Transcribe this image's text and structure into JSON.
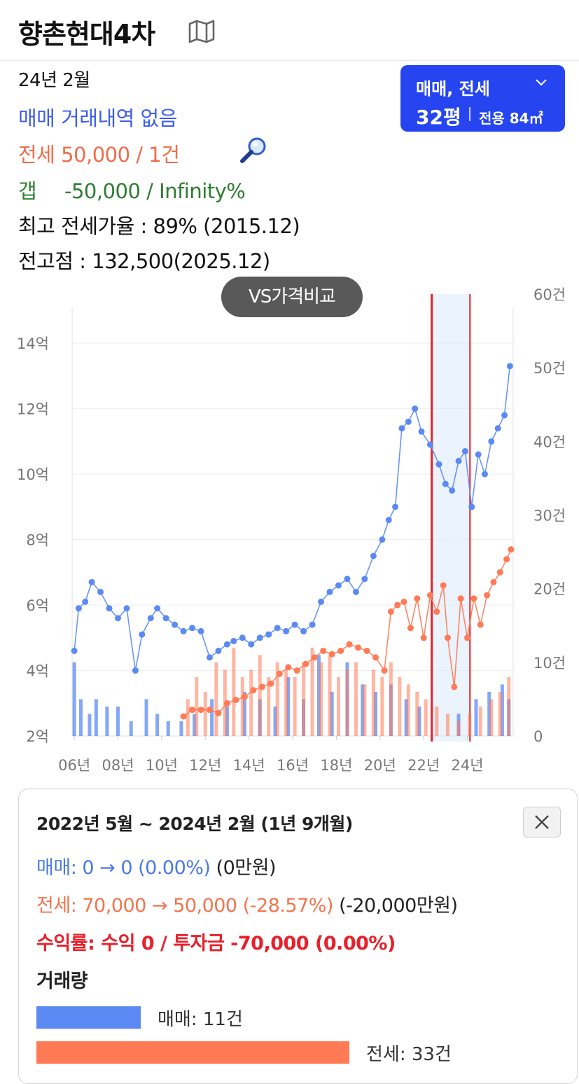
{
  "header": {
    "title": "향촌현대4차",
    "map_icon": "map-icon"
  },
  "info": {
    "date": "24년 2월",
    "maemae": "매매 거래내역 없음",
    "jeonse": "전세 50,000 / 1건",
    "gap_label": "갭",
    "gap_value": "-50,000 / Infinity%",
    "max_rate": "최고 전세가율 : 89% (2015.12)",
    "peak": "전고점 : 132,500(2025.12)"
  },
  "selector": {
    "type": "매매, 전세",
    "size": "32평",
    "area": "전용 84㎡"
  },
  "vs_button": "VS가격비교",
  "colors": {
    "maemae": "#5b8af5",
    "jeonse": "#ff7a55",
    "highlight": "#e8202a",
    "selector_bg": "#2645f0"
  },
  "chart_data": {
    "type": "line",
    "x_labels": [
      "06년",
      "08년",
      "10년",
      "12년",
      "14년",
      "16년",
      "18년",
      "20년",
      "22년",
      "24년"
    ],
    "y_left_labels": [
      "2억",
      "4억",
      "6억",
      "8억",
      "10억",
      "12억",
      "14억"
    ],
    "y_right_labels": [
      "0",
      "10건",
      "20건",
      "30건",
      "40건",
      "50건",
      "60건"
    ],
    "y_left_range": [
      2,
      15.5
    ],
    "y_right_range": [
      0,
      60
    ],
    "x_range": [
      2005.9,
      2026.1
    ],
    "grid": true,
    "highlight_range": [
      2022.37,
      2024.12
    ],
    "series": [
      {
        "name": "매매",
        "x": [
          2006.0,
          2006.2,
          2006.5,
          2006.8,
          2007.2,
          2007.6,
          2008.0,
          2008.4,
          2008.8,
          2009.1,
          2009.5,
          2009.8,
          2010.2,
          2010.6,
          2011.0,
          2011.4,
          2011.8,
          2012.2,
          2012.6,
          2013.0,
          2013.3,
          2013.7,
          2014.1,
          2014.5,
          2014.9,
          2015.3,
          2015.7,
          2016.1,
          2016.5,
          2016.9,
          2017.3,
          2017.7,
          2018.1,
          2018.5,
          2018.9,
          2019.3,
          2019.7,
          2020.1,
          2020.4,
          2020.7,
          2021.0,
          2021.3,
          2021.6,
          2021.9,
          2022.3,
          2022.7,
          2023.0,
          2023.3,
          2023.6,
          2023.9,
          2024.2,
          2024.5,
          2024.8,
          2025.1,
          2025.4,
          2025.7,
          2025.95
        ],
        "values": [
          4.6,
          5.9,
          6.1,
          6.7,
          6.4,
          5.9,
          5.6,
          5.9,
          4.0,
          5.1,
          5.6,
          5.9,
          5.6,
          5.4,
          5.2,
          5.3,
          5.2,
          4.4,
          4.6,
          4.8,
          4.9,
          5.0,
          4.8,
          5.0,
          5.1,
          5.3,
          5.2,
          5.4,
          5.2,
          5.4,
          6.1,
          6.4,
          6.6,
          6.8,
          6.4,
          6.8,
          7.5,
          8.0,
          8.6,
          9.0,
          11.4,
          11.6,
          12.0,
          11.3,
          10.9,
          10.3,
          9.7,
          9.5,
          10.4,
          10.7,
          9.0,
          10.6,
          10.0,
          11.0,
          11.4,
          11.8,
          13.3
        ]
      },
      {
        "name": "전세",
        "x": [
          2011.0,
          2011.4,
          2011.8,
          2012.2,
          2012.6,
          2013.0,
          2013.4,
          2013.8,
          2014.2,
          2014.6,
          2015.0,
          2015.4,
          2015.8,
          2016.2,
          2016.6,
          2017.0,
          2017.4,
          2017.8,
          2018.2,
          2018.6,
          2019.0,
          2019.4,
          2019.8,
          2020.2,
          2020.5,
          2020.8,
          2021.1,
          2021.4,
          2021.7,
          2022.0,
          2022.3,
          2022.6,
          2022.9,
          2023.1,
          2023.4,
          2023.7,
          2024.0,
          2024.3,
          2024.6,
          2024.9,
          2025.2,
          2025.5,
          2025.8,
          2026.0
        ],
        "values": [
          2.6,
          2.8,
          2.8,
          2.8,
          2.7,
          3.0,
          3.1,
          3.2,
          3.4,
          3.5,
          3.6,
          3.9,
          4.1,
          4.0,
          4.2,
          4.4,
          4.6,
          4.5,
          4.6,
          4.8,
          4.7,
          4.6,
          4.4,
          4.0,
          5.8,
          6.0,
          6.1,
          5.3,
          6.2,
          5.0,
          6.3,
          5.8,
          6.6,
          5.0,
          3.5,
          6.2,
          5.0,
          6.2,
          5.4,
          6.3,
          6.7,
          7.0,
          7.4,
          7.7
        ]
      }
    ],
    "volume_series": [
      {
        "name": "매매",
        "x": [
          2006.0,
          2006.3,
          2006.7,
          2007.0,
          2007.5,
          2008.0,
          2008.6,
          2009.3,
          2009.8,
          2010.3,
          2010.9,
          2011.5,
          2012.3,
          2013.0,
          2013.8,
          2014.5,
          2015.2,
          2015.8,
          2016.5,
          2017.2,
          2017.8,
          2018.5,
          2019.2,
          2019.8,
          2020.5,
          2021.2,
          2021.8,
          2023.6,
          2024.4,
          2025.0,
          2025.6,
          2025.9
        ],
        "values": [
          10,
          5,
          3,
          5,
          4,
          4,
          2,
          5,
          3,
          2,
          2,
          3,
          5,
          4,
          6,
          5,
          4,
          8,
          5,
          11,
          6,
          10,
          7,
          6,
          7,
          5,
          4,
          3,
          5,
          6,
          7,
          5
        ]
      },
      {
        "name": "전세",
        "x": [
          2011.2,
          2011.6,
          2012.0,
          2012.5,
          2012.9,
          2013.3,
          2013.7,
          2014.1,
          2014.5,
          2014.9,
          2015.3,
          2015.7,
          2016.1,
          2016.5,
          2016.9,
          2017.3,
          2017.7,
          2018.1,
          2018.5,
          2018.9,
          2019.3,
          2019.7,
          2020.1,
          2020.5,
          2020.9,
          2021.3,
          2021.7,
          2022.1,
          2022.6,
          2023.1,
          2023.6,
          2024.1,
          2024.6,
          2025.1,
          2025.5,
          2025.9
        ],
        "values": [
          5,
          8,
          6,
          10,
          9,
          12,
          8,
          9,
          11,
          8,
          10,
          9,
          8,
          10,
          12,
          10,
          11,
          8,
          9,
          10,
          7,
          9,
          8,
          10,
          8,
          7,
          6,
          5,
          4,
          3,
          2,
          3,
          4,
          5,
          6,
          8
        ]
      }
    ]
  },
  "panel": {
    "range": "2022년 5월 ~ 2024년 2월 (1년 9개월)",
    "close_icon": "close-icon",
    "maemae_label": "매매",
    "maemae_change": "0 → 0 (0.00%)",
    "maemae_diff": "(0만원)",
    "jeonse_label": "전세",
    "jeonse_change": "70,000 → 50,000 (-28.57%)",
    "jeonse_diff": "(-20,000만원)",
    "yield_label": "수익률",
    "yield_value": "수익 0 / 투자금 -70,000 (0.00%)",
    "volume_title": "거래량",
    "volume_maemae_count": 11,
    "volume_jeonse_count": 33,
    "volume_maemae": "매매: 11건",
    "volume_jeonse": "전세: 33건"
  }
}
